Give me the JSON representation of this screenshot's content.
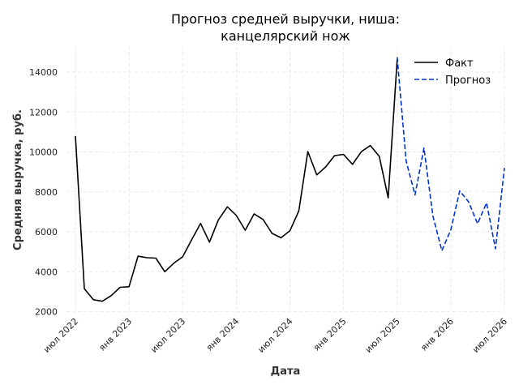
{
  "chart_data": {
    "type": "line",
    "title_lines": [
      "Прогноз средней выручки, ниша:",
      "канцелярский нож"
    ],
    "xlabel": "Дата",
    "ylabel": "Средняя выручка, руб.",
    "ylim": [
      1900,
      15300
    ],
    "yticks": [
      2000,
      4000,
      6000,
      8000,
      10000,
      12000,
      14000
    ],
    "xlim": [
      "2022-06",
      "2026-07"
    ],
    "xticks": [
      {
        "date": "2022-07",
        "label": "июл 2022"
      },
      {
        "date": "2023-01",
        "label": "янв 2023"
      },
      {
        "date": "2023-07",
        "label": "июл 2023"
      },
      {
        "date": "2024-01",
        "label": "янв 2024"
      },
      {
        "date": "2024-07",
        "label": "июл 2024"
      },
      {
        "date": "2025-01",
        "label": "янв 2025"
      },
      {
        "date": "2025-07",
        "label": "июл 2025"
      },
      {
        "date": "2026-01",
        "label": "янв 2026"
      },
      {
        "date": "2026-07",
        "label": "июл 2026"
      }
    ],
    "grid": true,
    "legend_position": "top-right",
    "series": [
      {
        "name": "Факт",
        "color": "#000000",
        "dash": "solid",
        "points": [
          [
            "2022-07",
            10800
          ],
          [
            "2022-08",
            3150
          ],
          [
            "2022-09",
            2600
          ],
          [
            "2022-10",
            2520
          ],
          [
            "2022-11",
            2800
          ],
          [
            "2022-12",
            3220
          ],
          [
            "2023-01",
            3250
          ],
          [
            "2023-02",
            4780
          ],
          [
            "2023-03",
            4700
          ],
          [
            "2023-04",
            4680
          ],
          [
            "2023-05",
            4000
          ],
          [
            "2023-06",
            4420
          ],
          [
            "2023-07",
            4750
          ],
          [
            "2023-08",
            5600
          ],
          [
            "2023-09",
            6420
          ],
          [
            "2023-10",
            5480
          ],
          [
            "2023-11",
            6600
          ],
          [
            "2023-12",
            7250
          ],
          [
            "2024-01",
            6820
          ],
          [
            "2024-02",
            6080
          ],
          [
            "2024-03",
            6900
          ],
          [
            "2024-04",
            6620
          ],
          [
            "2024-05",
            5920
          ],
          [
            "2024-06",
            5700
          ],
          [
            "2024-07",
            6050
          ],
          [
            "2024-08",
            7050
          ],
          [
            "2024-09",
            10020
          ],
          [
            "2024-10",
            8850
          ],
          [
            "2024-11",
            9250
          ],
          [
            "2024-12",
            9820
          ],
          [
            "2025-01",
            9880
          ],
          [
            "2025-02",
            9380
          ],
          [
            "2025-03",
            10020
          ],
          [
            "2025-04",
            10320
          ],
          [
            "2025-05",
            9780
          ],
          [
            "2025-06",
            7700
          ],
          [
            "2025-07",
            14650
          ]
        ]
      },
      {
        "name": "Прогноз",
        "color": "#0033cc",
        "dash": "dashed",
        "points": [
          [
            "2025-07",
            14750
          ],
          [
            "2025-08",
            9550
          ],
          [
            "2025-09",
            7850
          ],
          [
            "2025-10",
            10200
          ],
          [
            "2025-11",
            6800
          ],
          [
            "2025-12",
            5050
          ],
          [
            "2026-01",
            6100
          ],
          [
            "2026-02",
            8050
          ],
          [
            "2026-03",
            7500
          ],
          [
            "2026-04",
            6400
          ],
          [
            "2026-05",
            7450
          ],
          [
            "2026-06",
            5150
          ],
          [
            "2026-07",
            9200
          ]
        ]
      }
    ]
  }
}
